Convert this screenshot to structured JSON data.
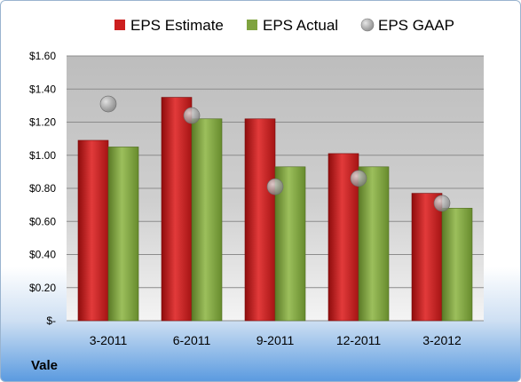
{
  "company": "Vale",
  "chart_data": {
    "type": "bar",
    "categories": [
      "3-2011",
      "6-2011",
      "9-2011",
      "12-2011",
      "3-2012"
    ],
    "series": [
      {
        "name": "EPS Estimate",
        "type": "bar",
        "color": "#cc1f1f",
        "values": [
          1.09,
          1.35,
          1.22,
          1.01,
          0.77
        ]
      },
      {
        "name": "EPS Actual",
        "type": "bar",
        "color": "#7fa33f",
        "values": [
          1.05,
          1.22,
          0.93,
          0.93,
          0.68
        ]
      },
      {
        "name": "EPS GAAP",
        "type": "scatter",
        "color": "#9a9a9a",
        "values": [
          1.31,
          1.24,
          0.81,
          0.86,
          0.71
        ]
      }
    ],
    "y_ticks": [
      "$-",
      "$0.20",
      "$0.40",
      "$0.60",
      "$0.80",
      "$1.00",
      "$1.20",
      "$1.40",
      "$1.60"
    ],
    "ylim": [
      0,
      1.6
    ],
    "ytick_step": 0.2,
    "grid": true,
    "legend": "top"
  }
}
